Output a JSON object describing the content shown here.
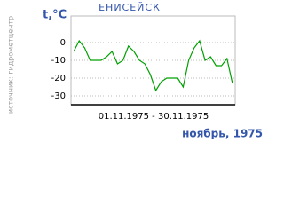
{
  "chart_data": {
    "type": "line",
    "title": "ЕНИСЕЙСК",
    "y_label": "t,°C",
    "source": "источник: гидрометцентр",
    "x_label": "01.11.1975 - 30.11.1975",
    "period": "ноябрь, 1975",
    "categories": [
      null,
      null,
      null,
      null,
      null,
      null,
      null,
      null,
      null,
      null,
      null,
      null,
      null,
      null,
      null,
      null,
      null,
      null,
      null,
      null,
      null,
      null,
      null,
      null,
      null,
      null,
      null,
      null,
      null,
      null
    ],
    "series": [
      {
        "color": "#00a000",
        "values": [
          -5,
          1,
          -3,
          -10,
          -10,
          -10,
          -8,
          -5,
          -12,
          -10,
          -2,
          -5,
          -10,
          -12,
          -18,
          -27,
          -22,
          -20,
          -20,
          -20,
          -25,
          -10,
          -3,
          1,
          -10,
          -8,
          -13,
          -13,
          -9,
          -23
        ]
      }
    ],
    "ylim": [
      -35,
      15
    ],
    "yticks": [
      0,
      -10,
      -20,
      -30
    ],
    "grid": true
  }
}
